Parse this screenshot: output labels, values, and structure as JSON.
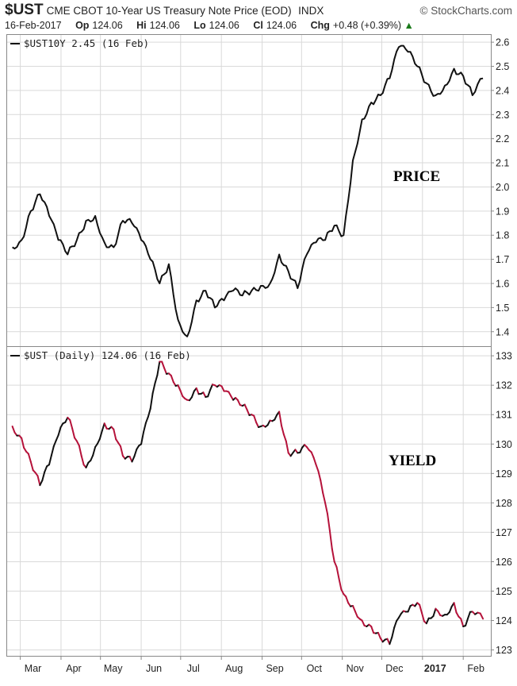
{
  "header": {
    "symbol": "$UST",
    "description": "CME CBOT 10-Year US Treasury Note Price (EOD)",
    "exchange": "INDX",
    "source": "© StockCharts.com",
    "date": "16-Feb-2017",
    "op_label": "Op",
    "op": "124.06",
    "hi_label": "Hi",
    "hi": "124.06",
    "lo_label": "Lo",
    "lo": "124.06",
    "cl_label": "Cl",
    "cl": "124.06",
    "chg_label": "Chg",
    "chg": "+0.48 (+0.39%)",
    "chg_arrow": "▲"
  },
  "colors": {
    "top_line": "#111111",
    "bottom_up": "#111111",
    "bottom_down": "#b5123a",
    "grid": "#d9d9d9"
  },
  "chart_data": [
    {
      "type": "line",
      "legend": "$UST10Y 2.45 (16 Feb)",
      "annotation": "PRICE",
      "ylim": [
        1.34,
        2.63
      ],
      "yticks": [
        "2.6",
        "2.5",
        "2.4",
        "2.3",
        "2.2",
        "2.1",
        "2.0",
        "1.9",
        "1.8",
        "1.7",
        "1.6",
        "1.5",
        "1.4"
      ],
      "x": [
        "2016-02-24",
        "2016-03-02",
        "2016-03-09",
        "2016-03-16",
        "2016-03-23",
        "2016-03-30",
        "2016-04-06",
        "2016-04-13",
        "2016-04-20",
        "2016-04-27",
        "2016-05-04",
        "2016-05-11",
        "2016-05-18",
        "2016-05-25",
        "2016-06-01",
        "2016-06-08",
        "2016-06-15",
        "2016-06-22",
        "2016-06-29",
        "2016-07-06",
        "2016-07-13",
        "2016-07-20",
        "2016-07-27",
        "2016-08-03",
        "2016-08-10",
        "2016-08-17",
        "2016-08-24",
        "2016-08-31",
        "2016-09-07",
        "2016-09-14",
        "2016-09-21",
        "2016-09-28",
        "2016-10-05",
        "2016-10-12",
        "2016-10-19",
        "2016-10-26",
        "2016-11-02",
        "2016-11-09",
        "2016-11-16",
        "2016-11-23",
        "2016-11-30",
        "2016-12-07",
        "2016-12-14",
        "2016-12-21",
        "2016-12-28",
        "2017-01-04",
        "2017-01-11",
        "2017-01-18",
        "2017-01-25",
        "2017-02-01",
        "2017-02-08",
        "2017-02-16"
      ],
      "values": [
        1.75,
        1.78,
        1.9,
        1.97,
        1.88,
        1.78,
        1.72,
        1.78,
        1.86,
        1.88,
        1.77,
        1.75,
        1.86,
        1.85,
        1.78,
        1.7,
        1.6,
        1.68,
        1.45,
        1.38,
        1.53,
        1.57,
        1.5,
        1.53,
        1.57,
        1.55,
        1.57,
        1.59,
        1.6,
        1.72,
        1.65,
        1.58,
        1.72,
        1.77,
        1.78,
        1.84,
        1.8,
        2.11,
        2.28,
        2.35,
        2.38,
        2.45,
        2.58,
        2.56,
        2.5,
        2.43,
        2.38,
        2.42,
        2.49,
        2.46,
        2.38,
        2.45
      ]
    },
    {
      "type": "line",
      "legend": "$UST (Daily) 124.06 (16 Feb)",
      "annotation": "YIELD",
      "ylim": [
        122.8,
        133.3
      ],
      "yticks": [
        "133",
        "132",
        "131",
        "130",
        "129",
        "128",
        "127",
        "126",
        "125",
        "124",
        "123"
      ],
      "x": [
        "2016-02-24",
        "2016-03-02",
        "2016-03-09",
        "2016-03-16",
        "2016-03-23",
        "2016-03-30",
        "2016-04-06",
        "2016-04-13",
        "2016-04-20",
        "2016-04-27",
        "2016-05-04",
        "2016-05-11",
        "2016-05-18",
        "2016-05-25",
        "2016-06-01",
        "2016-06-08",
        "2016-06-15",
        "2016-06-22",
        "2016-06-29",
        "2016-07-06",
        "2016-07-13",
        "2016-07-20",
        "2016-07-27",
        "2016-08-03",
        "2016-08-10",
        "2016-08-17",
        "2016-08-24",
        "2016-08-31",
        "2016-09-07",
        "2016-09-14",
        "2016-09-21",
        "2016-09-28",
        "2016-10-05",
        "2016-10-12",
        "2016-10-19",
        "2016-10-26",
        "2016-11-02",
        "2016-11-09",
        "2016-11-16",
        "2016-11-23",
        "2016-11-30",
        "2016-12-07",
        "2016-12-14",
        "2016-12-21",
        "2016-12-28",
        "2017-01-04",
        "2017-01-11",
        "2017-01-18",
        "2017-01-25",
        "2017-02-01",
        "2017-02-08",
        "2017-02-16"
      ],
      "values": [
        130.6,
        130.2,
        129.4,
        128.6,
        129.3,
        130.3,
        130.9,
        130.1,
        129.2,
        129.9,
        130.7,
        130.5,
        129.6,
        129.4,
        130.0,
        131.2,
        132.8,
        132.4,
        132.0,
        131.5,
        131.9,
        131.6,
        132.0,
        131.8,
        131.5,
        131.3,
        131.0,
        130.6,
        130.8,
        131.1,
        129.7,
        129.7,
        129.9,
        129.3,
        128.0,
        126.0,
        124.9,
        124.5,
        124.0,
        123.8,
        123.4,
        123.2,
        124.1,
        124.3,
        124.6,
        123.9,
        124.4,
        124.2,
        124.6,
        123.8,
        124.3,
        124.06
      ]
    }
  ],
  "xaxis": {
    "labels": [
      {
        "text": "Mar",
        "date": "2016-03-01"
      },
      {
        "text": "Apr",
        "date": "2016-04-01"
      },
      {
        "text": "May",
        "date": "2016-05-01"
      },
      {
        "text": "Jun",
        "date": "2016-06-01"
      },
      {
        "text": "Jul",
        "date": "2016-07-01"
      },
      {
        "text": "Aug",
        "date": "2016-08-01"
      },
      {
        "text": "Sep",
        "date": "2016-09-01"
      },
      {
        "text": "Oct",
        "date": "2016-10-01"
      },
      {
        "text": "Nov",
        "date": "2016-11-01"
      },
      {
        "text": "Dec",
        "date": "2016-12-01"
      },
      {
        "text": "2017",
        "date": "2017-01-01"
      },
      {
        "text": "Feb",
        "date": "2017-02-01"
      }
    ]
  }
}
